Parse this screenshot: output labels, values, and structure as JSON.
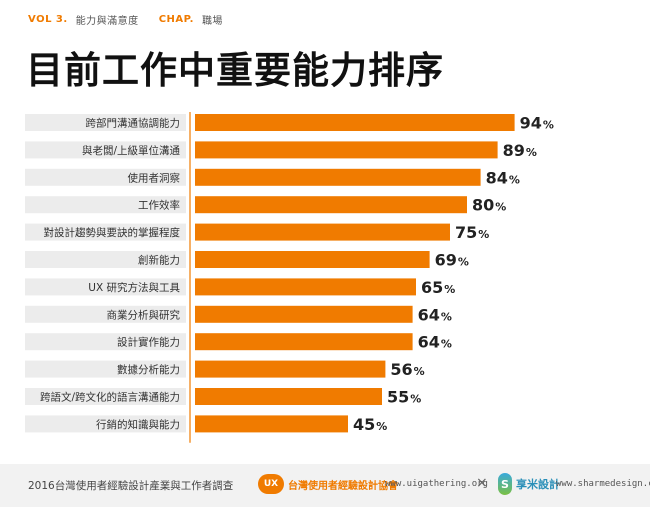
{
  "header": {
    "vol": "VOL 3.",
    "vol_subtitle": "能力與滿意度",
    "chap": "CHAP.",
    "chap_subtitle": "職場"
  },
  "title": "目前工作中重要能力排序",
  "colors": {
    "accent": "#f07b00",
    "label_bg": "#ececec"
  },
  "chart_data": {
    "type": "bar",
    "orientation": "horizontal",
    "categories": [
      "跨部門溝通協調能力",
      "與老闆/上級單位溝通",
      "使用者洞察",
      "工作效率",
      "對設計趨勢與要訣的掌握程度",
      "創新能力",
      "UX 研究方法與工具",
      "商業分析與研究",
      "設計實作能力",
      "數據分析能力",
      "跨語文/跨文化的語言溝通能力",
      "行銷的知識與能力"
    ],
    "values": [
      94,
      89,
      84,
      80,
      75,
      69,
      65,
      64,
      64,
      56,
      55,
      45
    ],
    "value_unit": "%",
    "xlim": [
      0,
      100
    ]
  },
  "footer": {
    "survey": "2016台灣使用者經驗設計產業與工作者調查",
    "ux_mark": "UX",
    "org": "台灣使用者經驗設計協會",
    "url1": "www.uigathering.org",
    "times": "×",
    "s_mark": "S",
    "brand2": "享米設計",
    "url2": "www.sharmedesign.com"
  }
}
